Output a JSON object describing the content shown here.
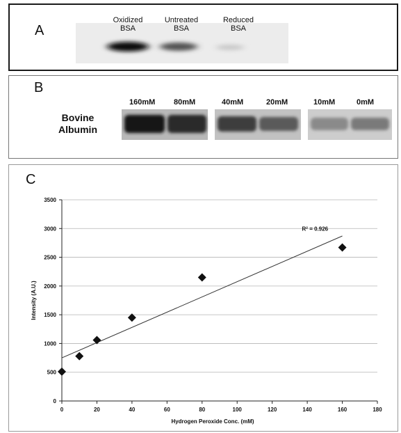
{
  "panel_a": {
    "letter": "A",
    "lanes": [
      {
        "line1": "Oxidized",
        "line2": "BSA"
      },
      {
        "line1": "Untreated",
        "line2": "BSA"
      },
      {
        "line1": "Reduced",
        "line2": "BSA"
      }
    ]
  },
  "panel_b": {
    "letter": "B",
    "row_label_line1": "Bovine",
    "row_label_line2": "Albumin",
    "lanes": [
      "160mM",
      "80mM",
      "40mM",
      "20mM",
      "10mM",
      "0mM"
    ]
  },
  "chart_data": {
    "panel_letter": "C",
    "type": "scatter",
    "xlabel": "Hydrogen Peroxide Conc. (mM)",
    "ylabel": "Intensity (A.U.)",
    "xlim": [
      0,
      180
    ],
    "ylim": [
      0,
      3500
    ],
    "xticks": [
      0,
      20,
      40,
      60,
      80,
      100,
      120,
      140,
      160,
      180
    ],
    "yticks": [
      0,
      500,
      1000,
      1500,
      2000,
      2500,
      3000,
      3500
    ],
    "grid": "horizontal",
    "marker": "diamond",
    "points": [
      {
        "x": 0,
        "y": 510
      },
      {
        "x": 10,
        "y": 780
      },
      {
        "x": 20,
        "y": 1060
      },
      {
        "x": 40,
        "y": 1450
      },
      {
        "x": 80,
        "y": 2150
      },
      {
        "x": 160,
        "y": 2670
      }
    ],
    "trendline": {
      "type": "linear",
      "from": {
        "x": 0,
        "y": 750
      },
      "to": {
        "x": 160,
        "y": 2870
      }
    },
    "annotation": "R² = 0.926"
  }
}
